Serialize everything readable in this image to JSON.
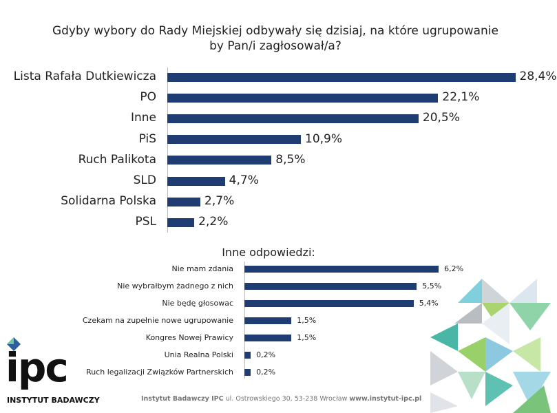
{
  "chart_data": [
    {
      "type": "bar",
      "orientation": "horizontal",
      "title": "Gdyby wybory do Rady Miejskiej odbywały się dzisiaj, na które ugrupowanie by Pan/i zagłosował/a?",
      "categories": [
        "Lista Rafała Dutkiewicza",
        "PO",
        "Inne",
        "PiS",
        "Ruch Palikota",
        "SLD",
        "Solidarna Polska",
        "PSL"
      ],
      "values": [
        28.4,
        22.1,
        20.5,
        10.9,
        8.5,
        4.7,
        2.7,
        2.2
      ],
      "value_labels": [
        "28,4%",
        "22,1%",
        "20,5%",
        "10,9%",
        "8,5%",
        "4,7%",
        "2,7%",
        "2,2%"
      ],
      "color": "#1f3d73"
    },
    {
      "type": "bar",
      "orientation": "horizontal",
      "title": "Inne odpowiedzi:",
      "categories": [
        "Nie mam zdania",
        "Nie wybrałbym żadnego z nich",
        "Nie będę głosowac",
        "Czekam na zupełnie nowe ugrupowanie",
        "Kongres Nowej Prawicy",
        "Unia Realna Polski",
        "Ruch legalizacji Związków Partnerskich"
      ],
      "values": [
        6.2,
        5.5,
        5.4,
        1.5,
        1.5,
        0.2,
        0.2
      ],
      "value_labels": [
        "6,2%",
        "5,5%",
        "5,4%",
        "1,5%",
        "1,5%",
        "0,2%",
        "0,2%"
      ],
      "color": "#1f3d73"
    }
  ],
  "logo": {
    "name": "ipc",
    "subtitle": "INSTYTUT BADAWCZY"
  },
  "footer": {
    "name": "Instytut Badawczy IPC",
    "address": "ul. Ostrowskiego 30, 53-238 Wrocław",
    "url": "www.instytut-ipc.pl"
  }
}
